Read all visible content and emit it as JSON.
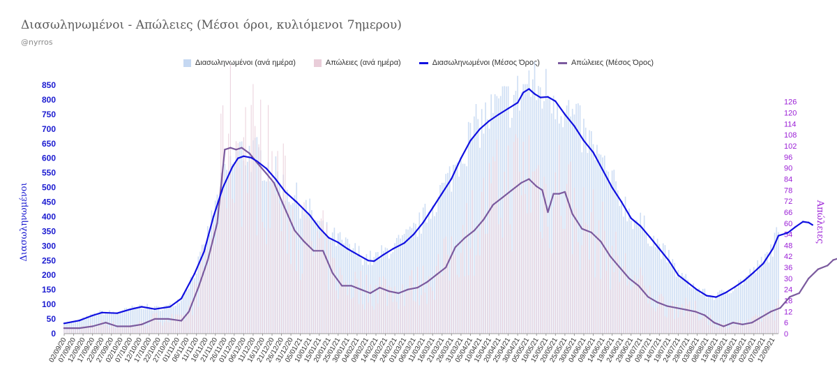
{
  "title": "Διασωληνωμένοι - Απώλειες (Μέσοι όροι, κυλιόμενοι 7ημερου)",
  "subtitle": "@nyrros",
  "colors": {
    "bar_intubated": "#c5d8f2",
    "bar_deaths": "#e9cdd9",
    "line_intubated": "#1010e0",
    "line_deaths": "#7b5a9e",
    "left_axis_text": "#1a1ad0",
    "right_axis_text": "#9b1fd6"
  },
  "legend": [
    {
      "label": "Διασωληνωμένοι (ανά ημέρα)",
      "kind": "bar",
      "color": "#c5d8f2"
    },
    {
      "label": "Απώλειες (ανά ημέρα)",
      "kind": "bar",
      "color": "#e9cdd9"
    },
    {
      "label": "Διασωληνωμένοι (Μέσος Όρος)",
      "kind": "line",
      "color": "#1010e0"
    },
    {
      "label": "Απώλειες (Μέσος Όρος)",
      "kind": "line",
      "color": "#7b5a9e"
    }
  ],
  "chart_data": {
    "type": "line",
    "title": "Διασωληνωμένοι - Απώλειες (Μέσοι όροι, κυλιόμενοι 7ημερου)",
    "ylabel": "Διασωληνωμένοι",
    "y2label": "Απώλειες",
    "ylim": [
      0,
      850
    ],
    "y2lim": [
      0,
      135
    ],
    "yticks": [
      0,
      50,
      100,
      150,
      200,
      250,
      300,
      350,
      400,
      450,
      500,
      550,
      600,
      650,
      700,
      750,
      800,
      850
    ],
    "y2ticks": [
      0,
      6,
      12,
      18,
      24,
      30,
      36,
      42,
      48,
      54,
      60,
      66,
      72,
      78,
      84,
      90,
      96,
      102,
      108,
      114,
      120,
      126
    ],
    "x_start": "2020-09-02",
    "x_end": "2021-09-15",
    "xtick_labels": [
      "02/09/20",
      "07/09/20",
      "12/09/20",
      "17/09/20",
      "22/09/20",
      "27/09/20",
      "02/10/20",
      "07/10/20",
      "12/10/20",
      "17/10/20",
      "22/10/20",
      "27/10/20",
      "01/11/20",
      "06/11/20",
      "11/11/20",
      "16/11/20",
      "21/11/20",
      "26/11/20",
      "01/12/20",
      "06/12/20",
      "11/12/20",
      "16/12/20",
      "21/12/20",
      "26/12/20",
      "31/12/20",
      "05/01/21",
      "10/01/21",
      "15/01/21",
      "20/01/21",
      "25/01/21",
      "30/01/21",
      "04/02/21",
      "09/02/21",
      "14/02/21",
      "19/02/21",
      "24/02/21",
      "01/03/21",
      "06/03/21",
      "11/03/21",
      "16/03/21",
      "21/03/21",
      "26/03/21",
      "31/03/21",
      "05/04/21",
      "10/04/21",
      "15/04/21",
      "20/04/21",
      "25/04/21",
      "30/04/21",
      "05/05/21",
      "10/05/21",
      "15/05/21",
      "20/05/21",
      "25/05/21",
      "30/05/21",
      "04/06/21",
      "09/06/21",
      "14/06/21",
      "19/06/21",
      "24/06/21",
      "29/06/21",
      "04/07/21",
      "09/07/21",
      "14/07/21",
      "19/07/21",
      "24/07/21",
      "29/07/21",
      "03/08/21",
      "08/08/21",
      "13/08/21",
      "18/08/21",
      "23/08/21",
      "28/08/21",
      "02/09/21",
      "07/09/21",
      "12/09/21"
    ],
    "grid": false,
    "legend_position": "top",
    "series": [
      {
        "name": "Διασωληνωμένοι (Μέσος Όρος)",
        "axis": "left",
        "points": [
          [
            "2020-09-02",
            35
          ],
          [
            "2020-09-10",
            45
          ],
          [
            "2020-09-17",
            62
          ],
          [
            "2020-09-22",
            72
          ],
          [
            "2020-09-30",
            70
          ],
          [
            "2020-10-07",
            83
          ],
          [
            "2020-10-13",
            92
          ],
          [
            "2020-10-20",
            84
          ],
          [
            "2020-10-28",
            92
          ],
          [
            "2020-11-03",
            120
          ],
          [
            "2020-11-10",
            205
          ],
          [
            "2020-11-15",
            280
          ],
          [
            "2020-11-20",
            400
          ],
          [
            "2020-11-25",
            500
          ],
          [
            "2020-11-30",
            570
          ],
          [
            "2020-12-03",
            600
          ],
          [
            "2020-12-06",
            607
          ],
          [
            "2020-12-10",
            602
          ],
          [
            "2020-12-13",
            590
          ],
          [
            "2020-12-18",
            565
          ],
          [
            "2020-12-23",
            528
          ],
          [
            "2020-12-28",
            485
          ],
          [
            "2021-01-03",
            450
          ],
          [
            "2021-01-10",
            405
          ],
          [
            "2021-01-15",
            362
          ],
          [
            "2021-01-20",
            328
          ],
          [
            "2021-01-25",
            312
          ],
          [
            "2021-01-30",
            290
          ],
          [
            "2021-02-05",
            268
          ],
          [
            "2021-02-10",
            250
          ],
          [
            "2021-02-13",
            248
          ],
          [
            "2021-02-18",
            270
          ],
          [
            "2021-02-23",
            290
          ],
          [
            "2021-03-01",
            310
          ],
          [
            "2021-03-06",
            340
          ],
          [
            "2021-03-11",
            380
          ],
          [
            "2021-03-16",
            430
          ],
          [
            "2021-03-21",
            480
          ],
          [
            "2021-03-26",
            530
          ],
          [
            "2021-03-31",
            600
          ],
          [
            "2021-04-05",
            660
          ],
          [
            "2021-04-10",
            700
          ],
          [
            "2021-04-15",
            728
          ],
          [
            "2021-04-20",
            750
          ],
          [
            "2021-04-25",
            770
          ],
          [
            "2021-04-30",
            790
          ],
          [
            "2021-05-03",
            825
          ],
          [
            "2021-05-06",
            837
          ],
          [
            "2021-05-09",
            820
          ],
          [
            "2021-05-12",
            808
          ],
          [
            "2021-05-16",
            810
          ],
          [
            "2021-05-20",
            795
          ],
          [
            "2021-05-25",
            750
          ],
          [
            "2021-05-30",
            710
          ],
          [
            "2021-06-04",
            660
          ],
          [
            "2021-06-09",
            620
          ],
          [
            "2021-06-14",
            560
          ],
          [
            "2021-06-19",
            500
          ],
          [
            "2021-06-24",
            450
          ],
          [
            "2021-06-29",
            395
          ],
          [
            "2021-07-04",
            368
          ],
          [
            "2021-07-09",
            330
          ],
          [
            "2021-07-14",
            290
          ],
          [
            "2021-07-19",
            250
          ],
          [
            "2021-07-24",
            200
          ],
          [
            "2021-07-29",
            175
          ],
          [
            "2021-08-03",
            150
          ],
          [
            "2021-08-08",
            130
          ],
          [
            "2021-08-13",
            125
          ],
          [
            "2021-08-18",
            140
          ],
          [
            "2021-08-23",
            160
          ],
          [
            "2021-08-28",
            182
          ],
          [
            "2021-09-02",
            210
          ],
          [
            "2021-09-07",
            240
          ],
          [
            "2021-09-12",
            290
          ],
          [
            "2021-09-15",
            335
          ],
          [
            "2021-09-20",
            345
          ],
          [
            "2021-09-24",
            365
          ],
          [
            "2021-09-28",
            383
          ],
          [
            "2021-10-01",
            380
          ],
          [
            "2021-10-03",
            372
          ]
        ]
      },
      {
        "name": "Απώλειες (Μέσος Όρος)",
        "axis": "right",
        "points": [
          [
            "2020-09-02",
            3
          ],
          [
            "2020-09-10",
            3
          ],
          [
            "2020-09-17",
            4
          ],
          [
            "2020-09-24",
            6
          ],
          [
            "2020-09-30",
            4
          ],
          [
            "2020-10-07",
            4
          ],
          [
            "2020-10-13",
            5
          ],
          [
            "2020-10-20",
            8
          ],
          [
            "2020-10-27",
            8
          ],
          [
            "2020-11-03",
            7
          ],
          [
            "2020-11-07",
            12
          ],
          [
            "2020-11-12",
            25
          ],
          [
            "2020-11-17",
            40
          ],
          [
            "2020-11-22",
            60
          ],
          [
            "2020-11-26",
            100
          ],
          [
            "2020-11-29",
            101
          ],
          [
            "2020-12-02",
            100
          ],
          [
            "2020-12-05",
            101
          ],
          [
            "2020-12-09",
            98
          ],
          [
            "2020-12-13",
            93
          ],
          [
            "2020-12-18",
            87
          ],
          [
            "2020-12-22",
            82
          ],
          [
            "2020-12-27",
            70
          ],
          [
            "2021-01-02",
            56
          ],
          [
            "2021-01-07",
            50
          ],
          [
            "2021-01-12",
            45
          ],
          [
            "2021-01-17",
            45
          ],
          [
            "2021-01-22",
            33
          ],
          [
            "2021-01-27",
            26
          ],
          [
            "2021-02-01",
            26
          ],
          [
            "2021-02-06",
            24
          ],
          [
            "2021-02-11",
            22
          ],
          [
            "2021-02-16",
            25
          ],
          [
            "2021-02-21",
            23
          ],
          [
            "2021-02-26",
            22
          ],
          [
            "2021-03-03",
            24
          ],
          [
            "2021-03-08",
            25
          ],
          [
            "2021-03-13",
            28
          ],
          [
            "2021-03-18",
            32
          ],
          [
            "2021-03-23",
            36
          ],
          [
            "2021-03-28",
            47
          ],
          [
            "2021-04-02",
            52
          ],
          [
            "2021-04-07",
            56
          ],
          [
            "2021-04-12",
            62
          ],
          [
            "2021-04-17",
            70
          ],
          [
            "2021-04-22",
            74
          ],
          [
            "2021-04-27",
            78
          ],
          [
            "2021-05-02",
            82
          ],
          [
            "2021-05-06",
            84
          ],
          [
            "2021-05-10",
            80
          ],
          [
            "2021-05-13",
            78
          ],
          [
            "2021-05-16",
            66
          ],
          [
            "2021-05-19",
            76
          ],
          [
            "2021-05-22",
            76
          ],
          [
            "2021-05-25",
            77
          ],
          [
            "2021-05-29",
            65
          ],
          [
            "2021-06-03",
            57
          ],
          [
            "2021-06-08",
            55
          ],
          [
            "2021-06-13",
            50
          ],
          [
            "2021-06-18",
            42
          ],
          [
            "2021-06-23",
            36
          ],
          [
            "2021-06-28",
            30
          ],
          [
            "2021-07-03",
            26
          ],
          [
            "2021-07-08",
            20
          ],
          [
            "2021-07-13",
            17
          ],
          [
            "2021-07-18",
            15
          ],
          [
            "2021-07-23",
            14
          ],
          [
            "2021-07-28",
            13
          ],
          [
            "2021-08-02",
            12
          ],
          [
            "2021-08-07",
            10
          ],
          [
            "2021-08-12",
            6
          ],
          [
            "2021-08-17",
            4
          ],
          [
            "2021-08-22",
            6
          ],
          [
            "2021-08-27",
            5
          ],
          [
            "2021-09-01",
            6
          ],
          [
            "2021-09-06",
            9
          ],
          [
            "2021-09-11",
            12
          ],
          [
            "2021-09-16",
            14
          ],
          [
            "2021-09-21",
            20
          ],
          [
            "2021-09-26",
            22
          ],
          [
            "2021-10-01",
            30
          ],
          [
            "2021-10-06",
            35
          ],
          [
            "2021-10-11",
            37
          ],
          [
            "2021-10-14",
            40
          ],
          [
            "2021-10-17",
            41
          ],
          [
            "2021-10-20",
            42
          ],
          [
            "2021-10-24",
            42
          ]
        ]
      }
    ]
  }
}
